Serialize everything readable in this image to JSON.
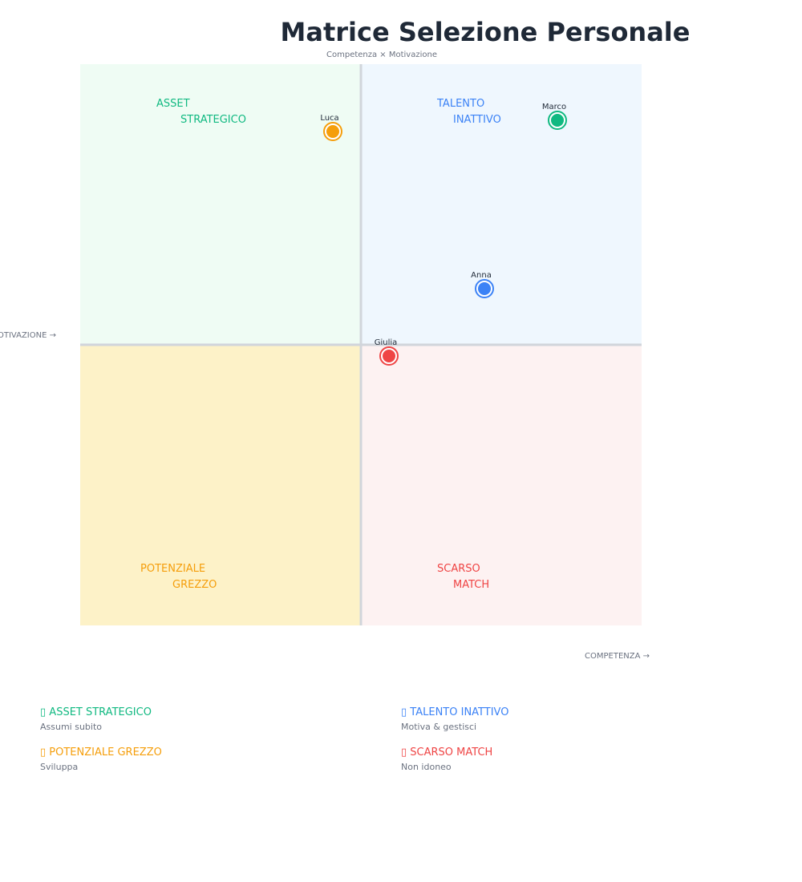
{
  "chart_data": {
    "type": "scatter",
    "title": "Matrice Selezione Personale",
    "subtitle": "Competenza × Motivazione",
    "xlabel": "COMPETENZA →",
    "ylabel": "MOTIVAZIONE →",
    "xlim": [
      0,
      100
    ],
    "ylim": [
      0,
      100
    ],
    "grid": false,
    "quadrants": [
      {
        "name": "ASSET STRATEGICO",
        "lines": [
          "ASSET",
          "STRATEGICO"
        ],
        "position": "top-left",
        "bg": "#effcf4",
        "color": "#10b981"
      },
      {
        "name": "TALENTO INATTIVO",
        "lines": [
          "TALENTO",
          "INATTIVO"
        ],
        "position": "top-right",
        "bg": "#eff7fe",
        "color": "#3b82f6"
      },
      {
        "name": "POTENZIALE GREZZO",
        "lines": [
          "POTENZIALE",
          "GREZZO"
        ],
        "position": "bottom-left",
        "bg": "#fdf2c8",
        "color": "#f59e0b"
      },
      {
        "name": "SCARSO MATCH",
        "lines": [
          "SCARSO",
          "MATCH"
        ],
        "position": "bottom-right",
        "bg": "#fdf2f2",
        "color": "#ef4444"
      }
    ],
    "points": [
      {
        "name": "Luca",
        "x": 45,
        "y": 88,
        "color": "#f59e0b"
      },
      {
        "name": "Marco",
        "x": 85,
        "y": 90,
        "color": "#10b981"
      },
      {
        "name": "Anna",
        "x": 72,
        "y": 60,
        "color": "#3b82f6"
      },
      {
        "name": "Giulia",
        "x": 55,
        "y": 48,
        "color": "#ef4444"
      }
    ]
  },
  "legend": [
    {
      "icon": "square-icon",
      "label": "ASSET STRATEGICO",
      "desc": "Assumi subito",
      "color": "#10b981"
    },
    {
      "icon": "square-icon",
      "label": "TALENTO INATTIVO",
      "desc": "Motiva & gestisci",
      "color": "#3b82f6"
    },
    {
      "icon": "square-icon",
      "label": "POTENZIALE GREZZO",
      "desc": "Sviluppa",
      "color": "#f59e0b"
    },
    {
      "icon": "square-icon",
      "label": "SCARSO MATCH",
      "desc": "Non idoneo",
      "color": "#ef4444"
    }
  ]
}
